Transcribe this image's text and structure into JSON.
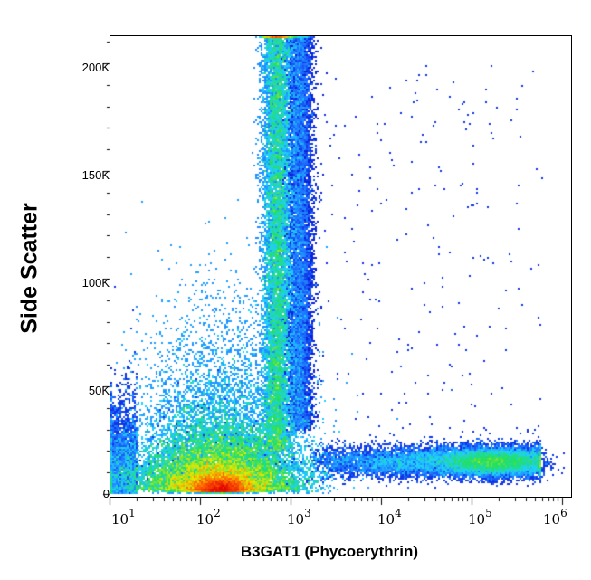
{
  "chart_data": {
    "type": "scatter",
    "subtype": "flow-cytometry-density-dot-plot",
    "title": "",
    "xlabel": "B3GAT1 (Phycoerythrin)",
    "ylabel": "Side Scatter",
    "x_scale": "log",
    "xlim": [
      8,
      1000000
    ],
    "ylim": [
      -2000,
      215000
    ],
    "x_ticks": [
      {
        "exp": "1",
        "base": "10",
        "value": 10
      },
      {
        "exp": "2",
        "base": "10",
        "value": 100
      },
      {
        "exp": "3",
        "base": "10",
        "value": 1000
      },
      {
        "exp": "4",
        "base": "10",
        "value": 10000
      },
      {
        "exp": "5",
        "base": "10",
        "value": 100000
      },
      {
        "exp": "6",
        "base": "10",
        "value": 1000000
      }
    ],
    "y_ticks": [
      {
        "label": "0",
        "value": 0
      },
      {
        "label": "50K",
        "value": 50000
      },
      {
        "label": "100K",
        "value": 100000
      },
      {
        "label": "150K",
        "value": 150000
      },
      {
        "label": "200K",
        "value": 200000
      }
    ],
    "colormap": [
      "#0000c8",
      "#1e6cff",
      "#20d0ff",
      "#20e060",
      "#e8e800",
      "#ff6000",
      "#e00000"
    ],
    "populations": [
      {
        "name": "B3GAT1-negative lymphocytes",
        "x_center": 160,
        "y_center": 5000,
        "density": "peak (red)",
        "count_weight": 0.45
      },
      {
        "name": "B3GAT1-negative granulocyte stream",
        "x_center": 700,
        "y_center": 120000,
        "y_range": [
          20000,
          215000
        ],
        "density": "medium (cyan/blue)",
        "count_weight": 0.25
      },
      {
        "name": "diffuse low events",
        "x_center": 200,
        "y_center": 40000,
        "density": "low (blue)",
        "count_weight": 0.2
      },
      {
        "name": "B3GAT1-positive (CD57+) cells",
        "x_range": [
          1500,
          600000
        ],
        "y_center": 15000,
        "x_peak": 150000,
        "density": "medium (blue/cyan)",
        "count_weight": 0.08
      },
      {
        "name": "scattered outliers",
        "x_range": [
          1000,
          600000
        ],
        "y_range": [
          20000,
          200000
        ],
        "density": "sparse",
        "count_weight": 0.02
      }
    ],
    "grid": false,
    "legend": "none"
  }
}
